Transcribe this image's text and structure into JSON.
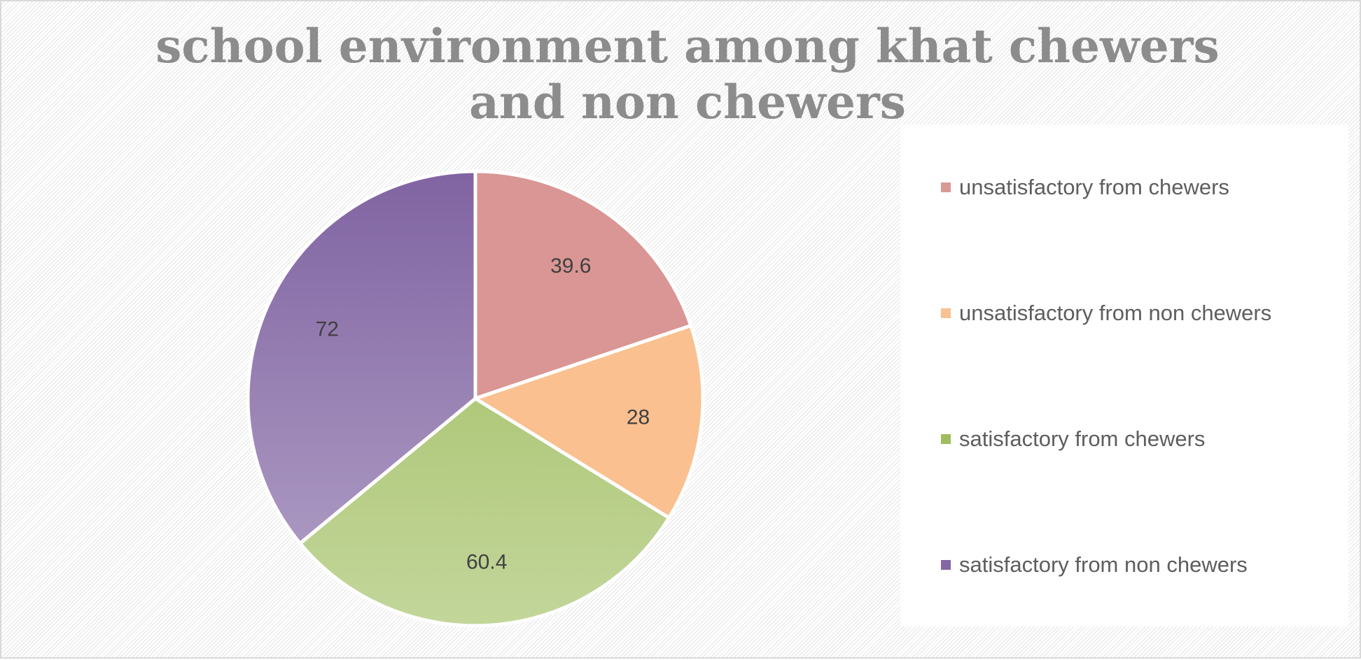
{
  "chart_data": {
    "type": "pie",
    "title": "school environment among khat chewers and non chewers",
    "categories": [
      "unsatisfactory from chewers",
      "unsatisfactory from non chewers",
      "satisfactory from chewers",
      "satisfactory from non chewers"
    ],
    "values": [
      39.6,
      28,
      60.4,
      72
    ],
    "colors": [
      "#d99694",
      "#fac090",
      "#9bbb59",
      "#8064a2"
    ],
    "colors_light": [
      "#d99694",
      "#fac090",
      "#c3d69b",
      "#b3a2c7"
    ],
    "legend_position": "right",
    "data_labels": true
  }
}
